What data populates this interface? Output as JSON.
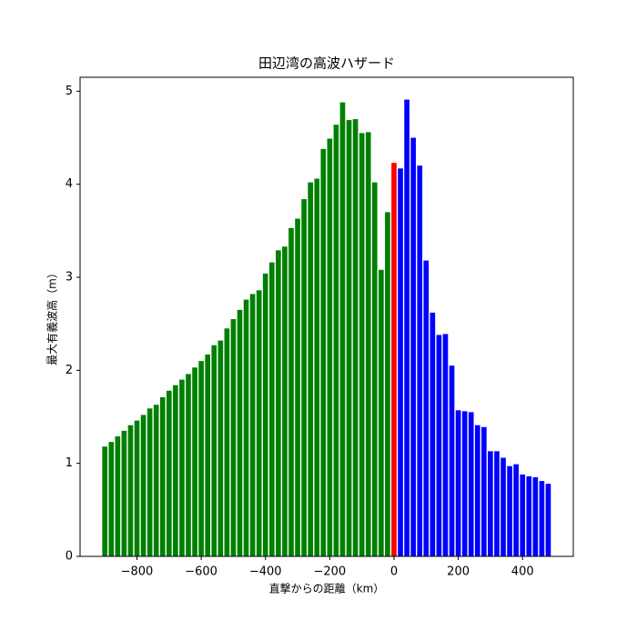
{
  "chart_data": {
    "type": "bar",
    "title": "田辺湾の高波ハザード",
    "x_label": "直撃からの距離（km）",
    "y_label": "最大有義波高（m）",
    "x": [
      -900,
      -880,
      -860,
      -840,
      -820,
      -800,
      -780,
      -760,
      -740,
      -720,
      -700,
      -680,
      -660,
      -640,
      -620,
      -600,
      -580,
      -560,
      -540,
      -520,
      -500,
      -480,
      -460,
      -440,
      -420,
      -400,
      -380,
      -360,
      -340,
      -320,
      -300,
      -280,
      -260,
      -240,
      -220,
      -200,
      -180,
      -160,
      -140,
      -120,
      -100,
      -80,
      -60,
      -40,
      -20,
      0,
      20,
      40,
      60,
      80,
      100,
      120,
      140,
      160,
      180,
      200,
      220,
      240,
      260,
      280,
      300,
      320,
      340,
      360,
      380,
      400,
      420,
      440,
      460,
      480
    ],
    "values": [
      1.18,
      1.23,
      1.29,
      1.35,
      1.41,
      1.46,
      1.52,
      1.59,
      1.63,
      1.71,
      1.78,
      1.84,
      1.9,
      1.96,
      2.03,
      2.1,
      2.17,
      2.27,
      2.32,
      2.45,
      2.55,
      2.65,
      2.76,
      2.82,
      2.86,
      3.04,
      3.16,
      3.29,
      3.33,
      3.53,
      3.63,
      3.84,
      4.02,
      4.06,
      4.38,
      4.49,
      4.64,
      4.88,
      4.69,
      4.7,
      4.55,
      4.56,
      4.02,
      3.08,
      3.7,
      4.23,
      4.17,
      4.91,
      4.5,
      4.2,
      3.18,
      2.62,
      2.38,
      2.39,
      2.05,
      1.57,
      1.56,
      1.55,
      1.41,
      1.39,
      1.13,
      1.13,
      1.06,
      0.97,
      0.99,
      0.88,
      0.86,
      0.85,
      0.81,
      0.78
    ],
    "colors": [
      "green",
      "green",
      "green",
      "green",
      "green",
      "green",
      "green",
      "green",
      "green",
      "green",
      "green",
      "green",
      "green",
      "green",
      "green",
      "green",
      "green",
      "green",
      "green",
      "green",
      "green",
      "green",
      "green",
      "green",
      "green",
      "green",
      "green",
      "green",
      "green",
      "green",
      "green",
      "green",
      "green",
      "green",
      "green",
      "green",
      "green",
      "green",
      "green",
      "green",
      "green",
      "green",
      "green",
      "green",
      "green",
      "red",
      "blue",
      "blue",
      "blue",
      "blue",
      "blue",
      "blue",
      "blue",
      "blue",
      "blue",
      "blue",
      "blue",
      "blue",
      "blue",
      "blue",
      "blue",
      "blue",
      "blue",
      "blue",
      "blue",
      "blue",
      "blue",
      "blue",
      "blue",
      "blue"
    ],
    "bar_width": 16,
    "xlim": [
      -977,
      558
    ],
    "ylim": [
      0,
      5.15
    ],
    "xticks": [
      {
        "value": -800,
        "label": "−800"
      },
      {
        "value": -600,
        "label": "−600"
      },
      {
        "value": -400,
        "label": "−400"
      },
      {
        "value": -200,
        "label": "−200"
      },
      0,
      200,
      400
    ],
    "yticks": [
      0,
      1,
      2,
      3,
      4,
      5
    ]
  }
}
